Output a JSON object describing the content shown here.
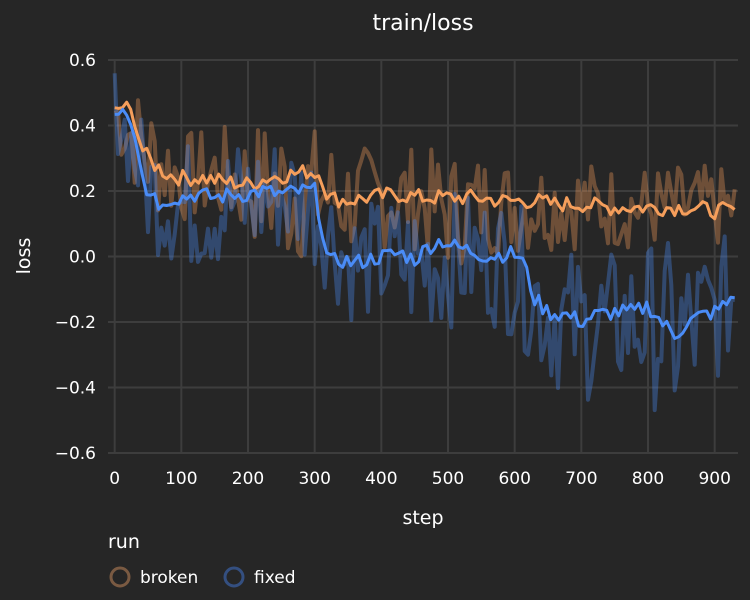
{
  "chart_data": {
    "type": "line",
    "title": "train/loss",
    "xlabel": "step",
    "ylabel": "loss",
    "xlim": [
      -10,
      935
    ],
    "ylim": [
      -0.6,
      0.6
    ],
    "x_ticks": [
      0,
      100,
      200,
      300,
      400,
      500,
      600,
      700,
      800,
      900
    ],
    "x_tick_labels": [
      "0",
      "100",
      "200",
      "300",
      "400",
      "500",
      "600",
      "700",
      "800",
      "900"
    ],
    "y_ticks": [
      0.6,
      0.4,
      0.2,
      0.0,
      -0.2,
      -0.4,
      -0.6
    ],
    "y_tick_labels": [
      "0.6",
      "0.4",
      "0.2",
      "0.0",
      "−0.2",
      "−0.4",
      "−0.6"
    ],
    "grid": true,
    "legend": {
      "title": "run",
      "position": "bottom-left",
      "entries": [
        "broken",
        "fixed"
      ]
    },
    "series": [
      {
        "name": "broken",
        "color": "#f59e5b",
        "smoothed": [
          [
            0,
            0.44
          ],
          [
            10,
            0.46
          ],
          [
            20,
            0.45
          ],
          [
            30,
            0.42
          ],
          [
            40,
            0.33
          ],
          [
            50,
            0.3
          ],
          [
            60,
            0.28
          ],
          [
            80,
            0.25
          ],
          [
            100,
            0.24
          ],
          [
            130,
            0.24
          ],
          [
            160,
            0.23
          ],
          [
            200,
            0.22
          ],
          [
            230,
            0.24
          ],
          [
            260,
            0.25
          ],
          [
            290,
            0.26
          ],
          [
            310,
            0.25
          ],
          [
            320,
            0.18
          ],
          [
            350,
            0.17
          ],
          [
            380,
            0.18
          ],
          [
            420,
            0.19
          ],
          [
            460,
            0.18
          ],
          [
            500,
            0.18
          ],
          [
            540,
            0.18
          ],
          [
            580,
            0.17
          ],
          [
            600,
            0.17
          ],
          [
            630,
            0.17
          ],
          [
            660,
            0.16
          ],
          [
            700,
            0.16
          ],
          [
            740,
            0.15
          ],
          [
            780,
            0.15
          ],
          [
            820,
            0.15
          ],
          [
            860,
            0.15
          ],
          [
            900,
            0.14
          ],
          [
            930,
            0.14
          ]
        ],
        "raw_range": [
          [
            0,
            0.32,
            0.56
          ],
          [
            50,
            0.12,
            0.5
          ],
          [
            100,
            0.1,
            0.38
          ],
          [
            150,
            0.1,
            0.4
          ],
          [
            200,
            0.05,
            0.4
          ],
          [
            250,
            -0.05,
            0.45
          ],
          [
            300,
            0.0,
            0.4
          ],
          [
            350,
            0.0,
            0.34
          ],
          [
            400,
            0.02,
            0.34
          ],
          [
            450,
            0.02,
            0.34
          ],
          [
            500,
            -0.05,
            0.32
          ],
          [
            550,
            0.0,
            0.32
          ],
          [
            600,
            0.0,
            0.3
          ],
          [
            650,
            0.02,
            0.3
          ],
          [
            700,
            0.02,
            0.3
          ],
          [
            750,
            0.02,
            0.28
          ],
          [
            800,
            0.02,
            0.28
          ],
          [
            850,
            0.02,
            0.28
          ],
          [
            900,
            0.02,
            0.28
          ],
          [
            930,
            0.04,
            0.26
          ]
        ]
      },
      {
        "name": "fixed",
        "color": "#4a8cf7",
        "smoothed": [
          [
            0,
            0.44
          ],
          [
            10,
            0.46
          ],
          [
            20,
            0.44
          ],
          [
            30,
            0.38
          ],
          [
            40,
            0.28
          ],
          [
            50,
            0.18
          ],
          [
            60,
            0.2
          ],
          [
            70,
            0.14
          ],
          [
            80,
            0.18
          ],
          [
            100,
            0.18
          ],
          [
            120,
            0.19
          ],
          [
            150,
            0.18
          ],
          [
            180,
            0.19
          ],
          [
            200,
            0.19
          ],
          [
            220,
            0.2
          ],
          [
            250,
            0.19
          ],
          [
            280,
            0.2
          ],
          [
            300,
            0.2
          ],
          [
            310,
            0.1
          ],
          [
            320,
            -0.02
          ],
          [
            340,
            -0.01
          ],
          [
            360,
            -0.02
          ],
          [
            400,
            0.0
          ],
          [
            430,
            0.01
          ],
          [
            450,
            -0.01
          ],
          [
            470,
            0.03
          ],
          [
            490,
            0.05
          ],
          [
            510,
            0.03
          ],
          [
            530,
            0.02
          ],
          [
            560,
            0.0
          ],
          [
            590,
            0.01
          ],
          [
            610,
            0.0
          ],
          [
            630,
            -0.13
          ],
          [
            650,
            -0.17
          ],
          [
            680,
            -0.18
          ],
          [
            700,
            -0.2
          ],
          [
            720,
            -0.18
          ],
          [
            750,
            -0.17
          ],
          [
            780,
            -0.17
          ],
          [
            800,
            -0.15
          ],
          [
            820,
            -0.2
          ],
          [
            840,
            -0.24
          ],
          [
            860,
            -0.2
          ],
          [
            880,
            -0.18
          ],
          [
            900,
            -0.17
          ],
          [
            920,
            -0.14
          ],
          [
            930,
            -0.11
          ]
        ],
        "raw_range": [
          [
            0,
            0.34,
            0.58
          ],
          [
            50,
            0.02,
            0.4
          ],
          [
            100,
            -0.05,
            0.36
          ],
          [
            150,
            -0.05,
            0.36
          ],
          [
            200,
            -0.05,
            0.38
          ],
          [
            250,
            0.0,
            0.38
          ],
          [
            300,
            -0.05,
            0.35
          ],
          [
            350,
            -0.2,
            0.16
          ],
          [
            400,
            -0.2,
            0.18
          ],
          [
            450,
            -0.25,
            0.2
          ],
          [
            500,
            -0.22,
            0.2
          ],
          [
            550,
            -0.2,
            0.2
          ],
          [
            600,
            -0.25,
            0.18
          ],
          [
            650,
            -0.4,
            0.05
          ],
          [
            700,
            -0.45,
            0.02
          ],
          [
            750,
            -0.42,
            0.02
          ],
          [
            800,
            -0.45,
            0.05
          ],
          [
            850,
            -0.55,
            0.05
          ],
          [
            900,
            -0.4,
            0.05
          ],
          [
            930,
            -0.3,
            0.08
          ]
        ]
      }
    ]
  }
}
